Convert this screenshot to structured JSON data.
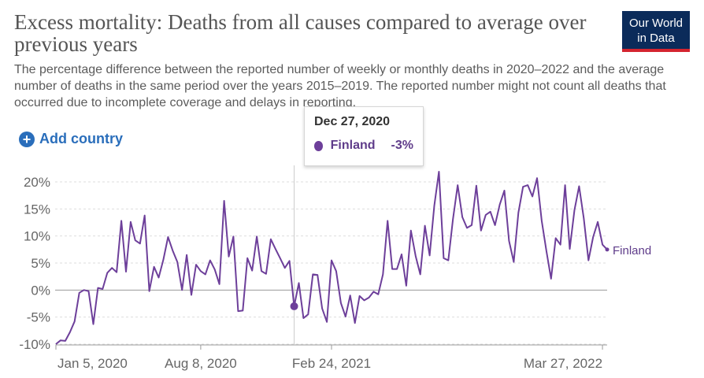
{
  "header": {
    "title": "Excess mortality: Deaths from all causes compared to average over previous years",
    "subtitle": "The percentage difference between the reported number of weekly or monthly deaths in 2020–2022 and the average number of deaths in the same period over the years 2015–2019. The reported number might not count all deaths that occurred due to incomplete coverage and delays in reporting.",
    "logo_line1": "Our World",
    "logo_line2": "in Data"
  },
  "controls": {
    "add_country": "Add country"
  },
  "tooltip": {
    "date": "Dec 27, 2020",
    "series": "Finland",
    "value": "-3%"
  },
  "colors": {
    "series": "#6d3f9a",
    "logo_bg": "#0b2b5a",
    "accent": "#d4242f",
    "link": "#2a6ebb"
  },
  "chart_data": {
    "type": "line",
    "ylim": [
      -10,
      22
    ],
    "yticks": [
      -10,
      -5,
      0,
      5,
      10,
      15,
      20
    ],
    "ytick_labels": [
      "-10%",
      "-5%",
      "0%",
      "5%",
      "10%",
      "15%",
      "20%"
    ],
    "xticks": [
      0,
      31,
      59,
      117
    ],
    "xtick_labels": [
      "Jan 5, 2020",
      "Aug 8, 2020",
      "Feb 24, 2021",
      "Mar 27, 2022"
    ],
    "highlight_index": 51,
    "series": [
      {
        "name": "Finland",
        "values": [
          -10,
          -9.3,
          -9.4,
          -7.8,
          -5.8,
          -0.5,
          0,
          -0.2,
          -6.3,
          0.4,
          0.2,
          3.2,
          4.1,
          3.3,
          12.8,
          3.4,
          12.6,
          9.2,
          8.6,
          13.8,
          -0.2,
          4.3,
          2.3,
          5.6,
          9.8,
          7.3,
          5.2,
          0,
          6.5,
          -0.9,
          4.7,
          3.5,
          2.9,
          5.5,
          3.8,
          1.1,
          16.5,
          6.2,
          9.9,
          -3.9,
          -3.8,
          5.9,
          3.6,
          9.9,
          3.5,
          3.0,
          9.4,
          7.6,
          5.9,
          4.1,
          5.4,
          -3.0,
          1.3,
          -5.2,
          -4.5,
          2.9,
          2.8,
          -3.4,
          -5.9,
          5.5,
          3.5,
          -2.4,
          -4.9,
          -1.0,
          -6.1,
          -1.1,
          -1.9,
          -1.4,
          -0.3,
          -0.8,
          2.9,
          12.8,
          3.9,
          3.9,
          6.6,
          0.8,
          11.0,
          6.3,
          2.9,
          11.9,
          6.4,
          15.6,
          21.9,
          5.9,
          5.5,
          13.1,
          19.4,
          13.5,
          11.5,
          12.0,
          19.3,
          11.0,
          13.9,
          14.5,
          12.0,
          15.8,
          18.4,
          9.1,
          5.2,
          14.3,
          19.1,
          19.4,
          17.3,
          20.7,
          12.8,
          7.2,
          2.1,
          9.6,
          8.4,
          19.4,
          7.6,
          14.8,
          19.2,
          13.3,
          5.5,
          9.8,
          12.6,
          8.4,
          7.5
        ]
      }
    ]
  }
}
